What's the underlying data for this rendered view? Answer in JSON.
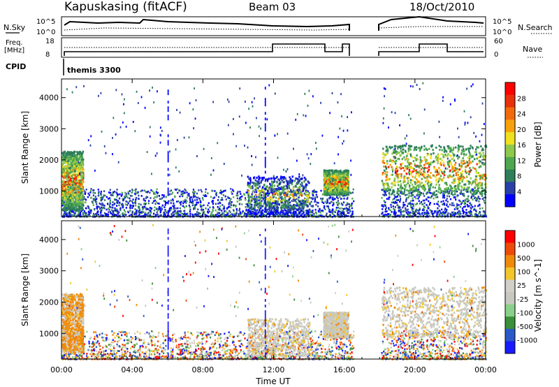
{
  "header": {
    "station": "Kapuskasing (fitACF)",
    "beam": "Beam 03",
    "date": "18/Oct/2010"
  },
  "top_panels": {
    "nsky_label": "N.Sky",
    "nsearch_label": "N.Search",
    "nsky_ticks": [
      "10^5",
      "10^0"
    ],
    "nsky_right_ticks": [
      "10^5",
      "10^0"
    ],
    "freq_label_1": "Freq.",
    "freq_label_2": "[MHz]",
    "freq_ticks": [
      "18",
      "8"
    ],
    "nave_label": "Nave",
    "nave_ticks": [
      "60",
      "0"
    ],
    "cpid_label": "CPID",
    "cpid_value": "themis 3300"
  },
  "colors": {
    "power_scale": [
      "#0000ff",
      "#2a3fa8",
      "#2e7f5a",
      "#4fa84f",
      "#8fc84a",
      "#f0e020",
      "#f7a20c",
      "#f26a0c",
      "#e8300a",
      "#ff0000"
    ],
    "velocity_scale": [
      "#1a1aff",
      "#2c58c8",
      "#3a8f3a",
      "#8ad08a",
      "#c8c8c0",
      "#d0d0c8",
      "#f2c62a",
      "#f08a0a",
      "#ee4a0a",
      "#ff0000"
    ]
  },
  "chart_data": [
    {
      "type": "heatmap",
      "title": "Power",
      "ylabel": "Slant Range [km]",
      "colorbar_label": "Power [dB]",
      "colorbar_ticks": [
        "28",
        "24",
        "20",
        "16",
        "12",
        "8",
        "4"
      ],
      "ylim": [
        180,
        4600
      ],
      "y_ticks": [
        "4000",
        "3000",
        "2000",
        "1000"
      ],
      "xlim": [
        "00:00",
        "24:00"
      ],
      "x_ticks": [
        "00:00",
        "04:00",
        "08:00",
        "12:00",
        "16:00",
        "20:00",
        "00:00"
      ],
      "data_gaps": [
        [
          "16:30",
          "18:05"
        ]
      ],
      "regions": [
        {
          "t": [
            0.0,
            1.2
          ],
          "r": [
            400,
            2300
          ],
          "level": "high"
        },
        {
          "t": [
            10.5,
            14.0
          ],
          "r": [
            300,
            1500
          ],
          "level": "medium"
        },
        {
          "t": [
            14.8,
            16.2
          ],
          "r": [
            900,
            1700
          ],
          "level": "high"
        },
        {
          "t": [
            18.1,
            24.0
          ],
          "r": [
            900,
            2500
          ],
          "level": "high"
        }
      ]
    },
    {
      "type": "heatmap",
      "title": "Velocity",
      "ylabel": "Slant Range [km]",
      "colorbar_label": "Velocity [m s^-1]",
      "colorbar_ticks": [
        "1000",
        "500",
        "100",
        "25",
        "-25",
        "-100",
        "-500",
        "-1000"
      ],
      "ylim": [
        180,
        4600
      ],
      "y_ticks": [
        "4000",
        "3000",
        "2000",
        "1000"
      ],
      "xlabel": "Time UT",
      "xlim": [
        "00:00",
        "24:00"
      ],
      "x_ticks": [
        "00:00",
        "04:00",
        "08:00",
        "12:00",
        "16:00",
        "20:00",
        "00:00"
      ],
      "data_gaps": [
        [
          "16:30",
          "18:05"
        ]
      ]
    }
  ]
}
